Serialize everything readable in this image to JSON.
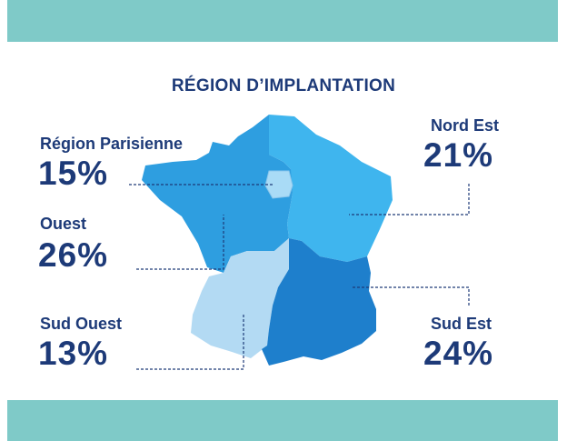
{
  "title": "RÉGION D’IMPLANTATION",
  "colors": {
    "band": "#7fcac8",
    "text": "#1d3a78",
    "region_parisienne": "#a9dbf6",
    "ouest": "#2e9ee0",
    "nord_est": "#3fb5ee",
    "sud_ouest": "#b3daf3",
    "sud_est": "#1e7fcc"
  },
  "regions": [
    {
      "id": "region-parisienne",
      "label": "Région Parisienne",
      "value": "15%"
    },
    {
      "id": "ouest",
      "label": "Ouest",
      "value": "26%"
    },
    {
      "id": "sud-ouest",
      "label": "Sud Ouest",
      "value": "13%"
    },
    {
      "id": "nord-est",
      "label": "Nord Est",
      "value": "21%"
    },
    {
      "id": "sud-est",
      "label": "Sud Est",
      "value": "24%"
    }
  ]
}
